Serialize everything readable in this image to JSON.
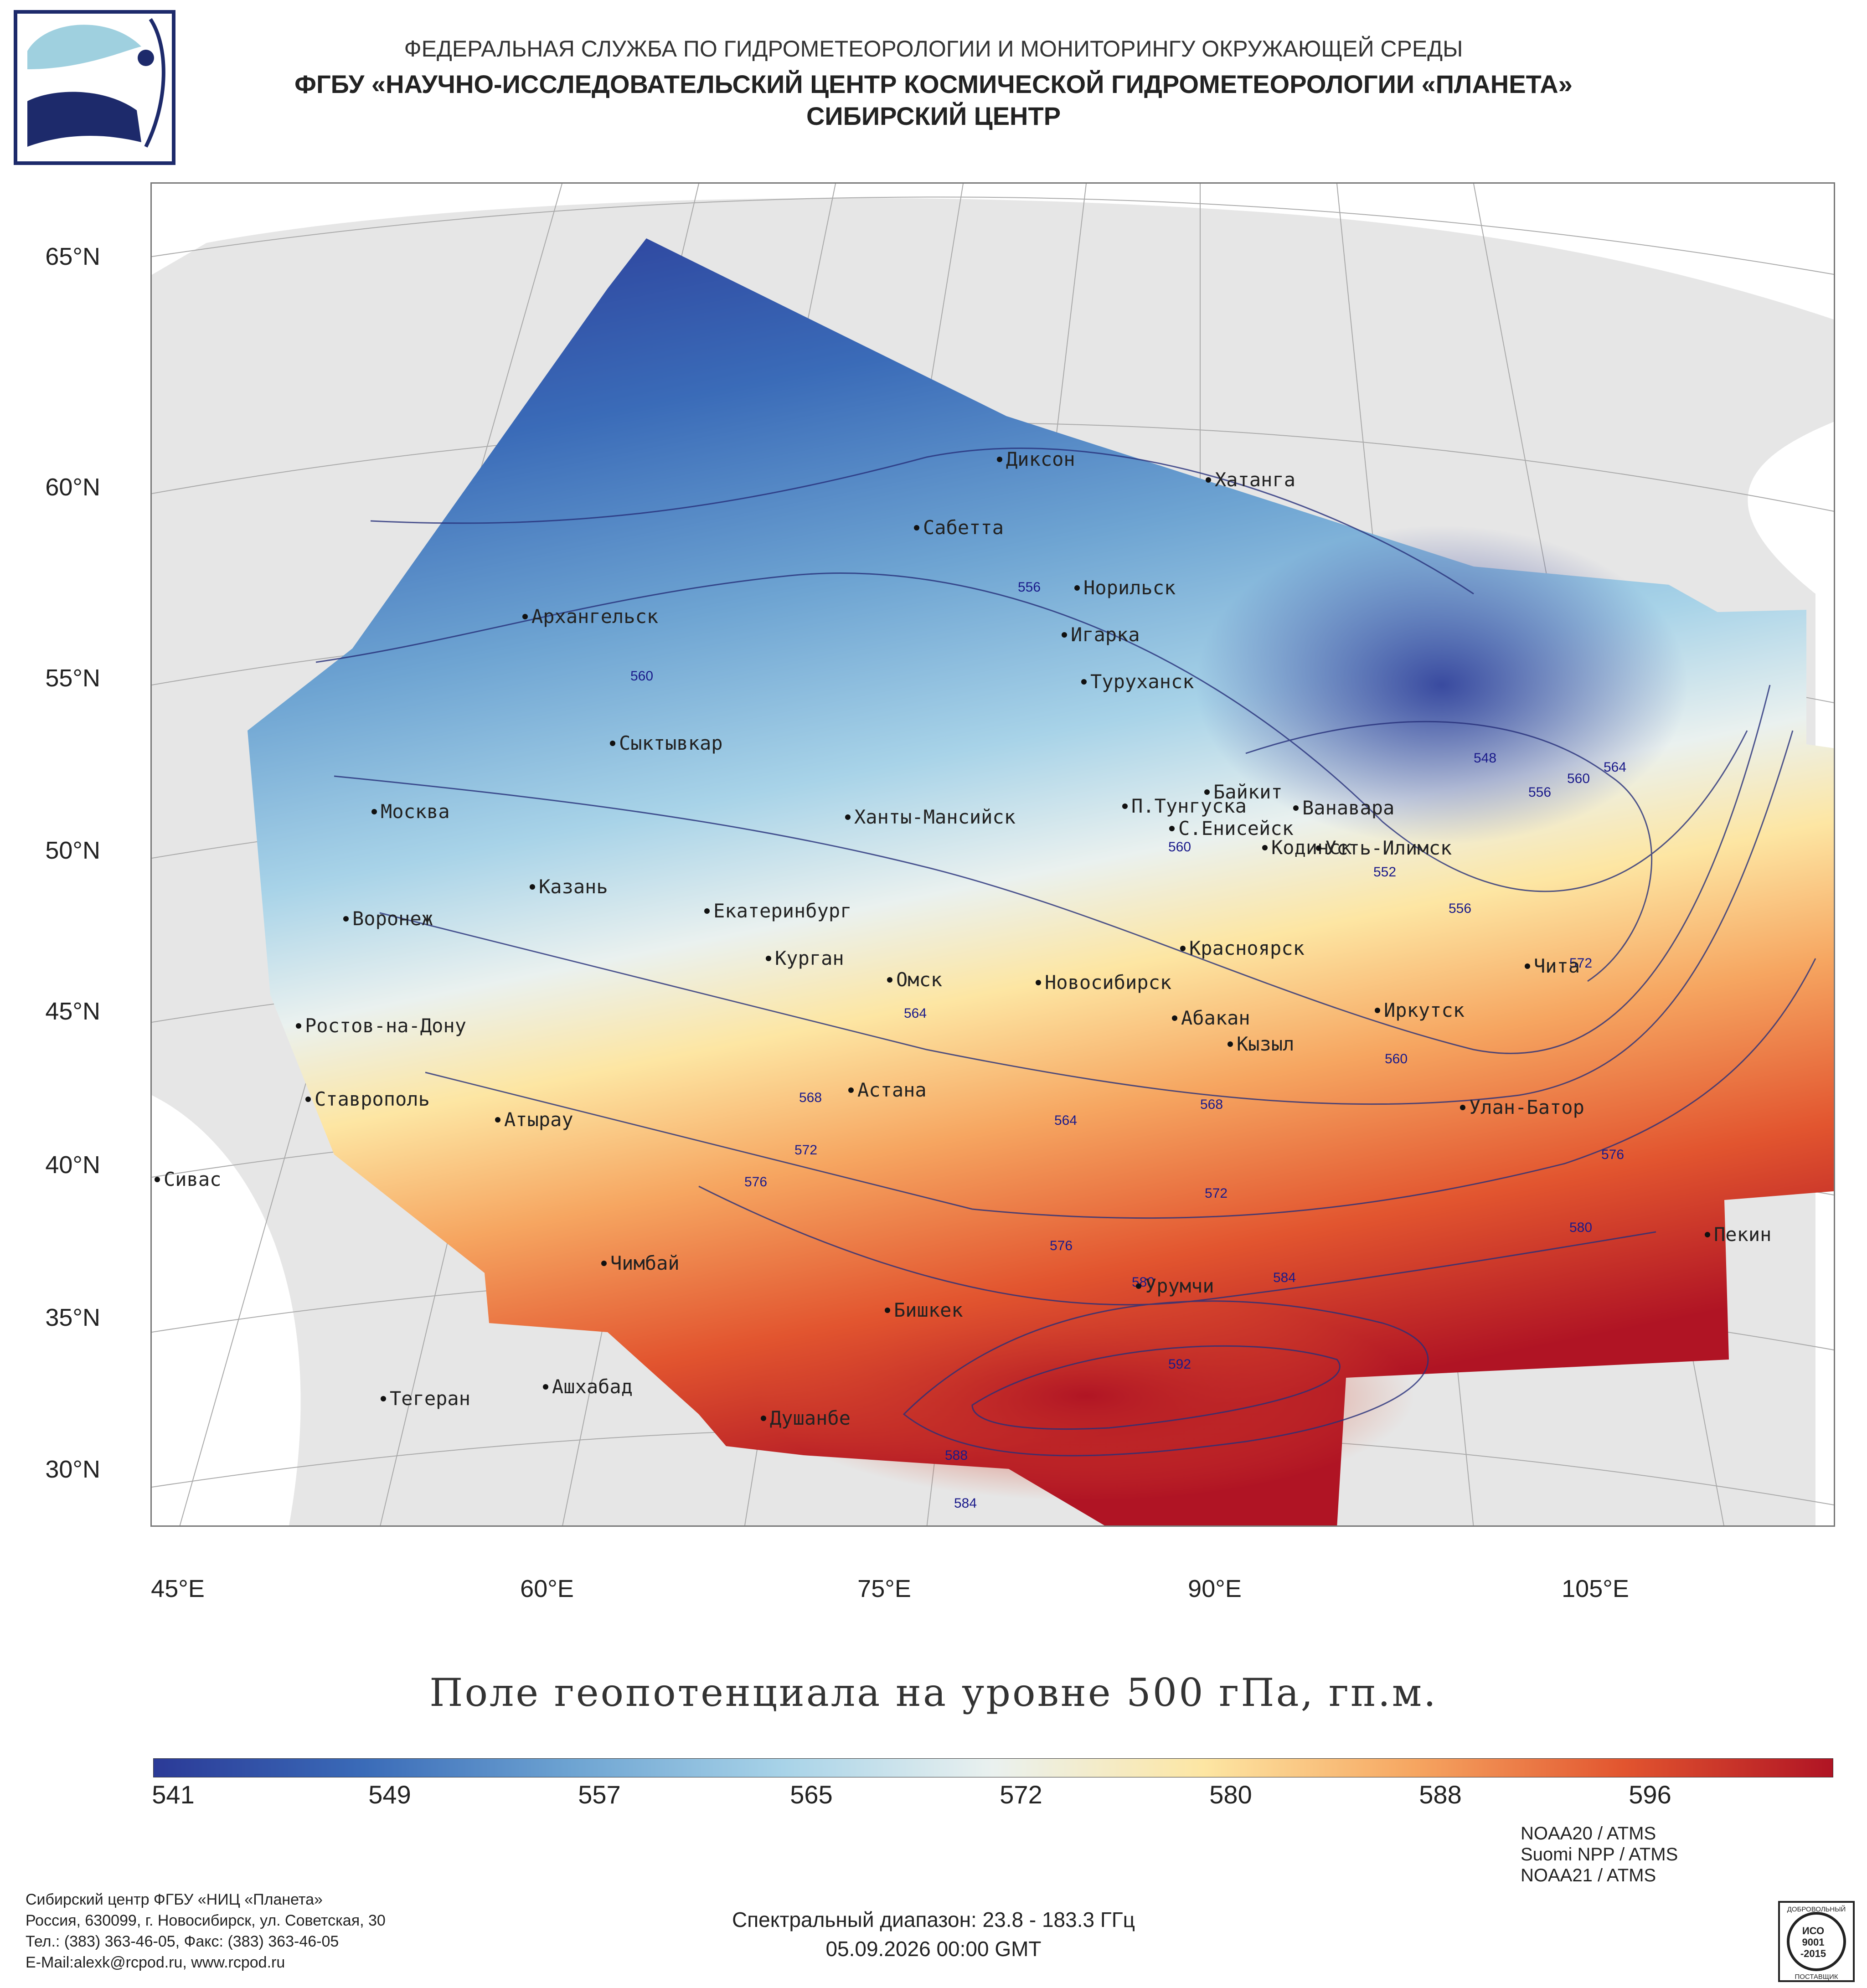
{
  "header": {
    "line1": "ФЕДЕРАЛЬНАЯ СЛУЖБА ПО ГИДРОМЕТЕОРОЛОГИИ И МОНИТОРИНГУ ОКРУЖАЮЩЕЙ СРЕДЫ",
    "line2": "ФГБУ «НАУЧНО-ИССЛЕДОВАТЕЛЬСКИЙ ЦЕНТР КОСМИЧЕСКОЙ ГИДРОМЕТЕОРОЛОГИИ «ПЛАНЕТА»",
    "line3": "СИБИРСКИЙ ЦЕНТР"
  },
  "map": {
    "lat_labels": [
      "65°N",
      "60°N",
      "55°N",
      "50°N",
      "45°N",
      "40°N",
      "35°N",
      "30°N"
    ],
    "lon_labels": [
      "45°E",
      "60°E",
      "75°E",
      "90°E",
      "105°E"
    ],
    "cities": [
      "Диксон",
      "Хатанга",
      "Сабетта",
      "Норильск",
      "Игарка",
      "Туруханск",
      "Архангельск",
      "Сыктывкар",
      "Москва",
      "Ханты-Мансийск",
      "Байкит",
      "П.Тунгуска",
      "Ванавара",
      "С.Енисейск",
      "Кодинск",
      "Усть-Илимск",
      "Казань",
      "Воронеж",
      "Екатеринбург",
      "Курган",
      "Красноярск",
      "Чита",
      "Омск",
      "Новосибирск",
      "Иркутск",
      "Абакан",
      "Ростов-на-Дону",
      "Кызыл",
      "Астана",
      "Ставрополь",
      "Атырау",
      "Улан-Батор",
      "Сивас",
      "Пекин",
      "Чимбай",
      "Урумчи",
      "Бишкек",
      "Ашхабад",
      "Тегеран",
      "Душанбе"
    ],
    "contour_labels": [
      "556",
      "560",
      "548",
      "556",
      "560",
      "564",
      "560",
      "552",
      "556",
      "564",
      "560",
      "572",
      "564",
      "568",
      "568",
      "572",
      "576",
      "572",
      "576",
      "576",
      "580",
      "584",
      "580",
      "592",
      "588",
      "584"
    ]
  },
  "title": "Поле геопотенциала на уровне 500 гПа, гп.м.",
  "colorbar": {
    "ticks": [
      "541",
      "549",
      "557",
      "565",
      "572",
      "580",
      "588",
      "596"
    ],
    "colors": [
      "#2b3a97",
      "#3a6bb8",
      "#6ea4d2",
      "#a8d3e8",
      "#eaf1ef",
      "#fde6a3",
      "#f6a661",
      "#e2552f",
      "#b01424"
    ]
  },
  "contacts": {
    "line1": "Сибирский центр ФГБУ «НИЦ «Планета»",
    "line2": "Россия, 630099, г. Новосибирск, ул. Советская, 30",
    "line3": "Тел.: (383) 363-46-05, Факс: (383) 363-46-05",
    "line4": "E-Mail:alexk@rcpod.ru, www.rcpod.ru"
  },
  "spectral": {
    "range": "Спектральный диапазон: 23.8 - 183.3 ГГц",
    "datetime": "05.09.2026 00:00 GMT"
  },
  "satellites": [
    "NOAA20 / ATMS",
    "Suomi NPP / ATMS",
    "NOAA21 / ATMS"
  ],
  "certificate": {
    "top": "ДОБРОВОЛЬНЫЙ",
    "iso": "ИСО",
    "num": "9001",
    "year": "-2015",
    "bottom": "ПОСТАВЩИК"
  }
}
